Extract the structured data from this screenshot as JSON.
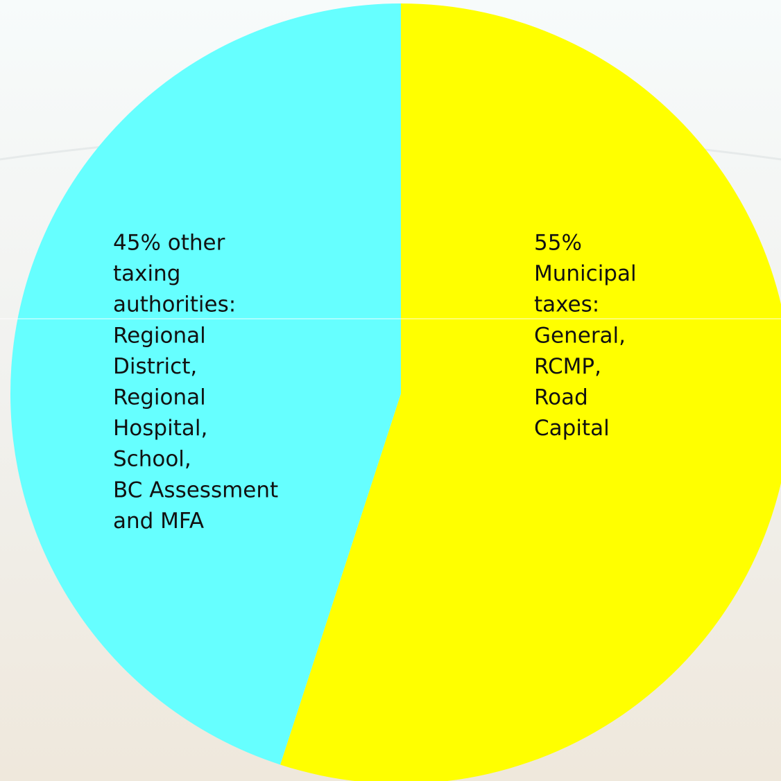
{
  "chart_data": {
    "type": "pie",
    "values": [
      55,
      45
    ],
    "colors": [
      "#ffff00",
      "#66ffff"
    ],
    "value_labels": [
      [
        "55%",
        "Municipal",
        "taxes:",
        "General,",
        "RCMP,",
        "Road",
        "Capital"
      ],
      [
        "45% other",
        "taxing",
        "authorities:",
        "Regional",
        "District,",
        "Regional",
        "Hospital,",
        "School,",
        "BC Assessment",
        "and  MFA"
      ]
    ]
  }
}
